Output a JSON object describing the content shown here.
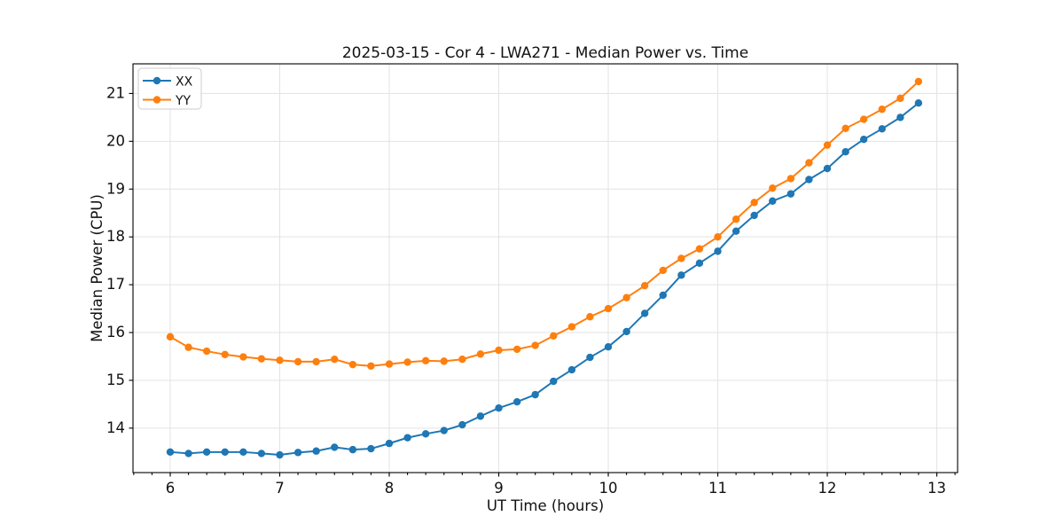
{
  "chart_data": {
    "type": "line",
    "title": "2025-03-15 - Cor 4 - LWA271 - Median Power vs. Time",
    "xlabel": "UT Time (hours)",
    "ylabel": "Median Power (CPU)",
    "xlim": [
      5.66,
      13.19
    ],
    "ylim": [
      13.07,
      21.62
    ],
    "xticks": [
      6,
      7,
      8,
      9,
      10,
      11,
      12,
      13
    ],
    "yticks": [
      14,
      15,
      16,
      17,
      18,
      19,
      20,
      21
    ],
    "minor_tick_step_x": 0.166667,
    "grid": true,
    "legend_position": "upper left",
    "x": [
      6.0,
      6.167,
      6.333,
      6.5,
      6.667,
      6.833,
      7.0,
      7.167,
      7.333,
      7.5,
      7.667,
      7.833,
      8.0,
      8.167,
      8.333,
      8.5,
      8.667,
      8.833,
      9.0,
      9.167,
      9.333,
      9.5,
      9.667,
      9.833,
      10.0,
      10.167,
      10.333,
      10.5,
      10.667,
      10.833,
      11.0,
      11.167,
      11.333,
      11.5,
      11.667,
      11.833,
      12.0,
      12.167,
      12.333,
      12.5,
      12.667,
      12.833
    ],
    "series": [
      {
        "name": "XX",
        "color": "#1f77b4",
        "values": [
          13.5,
          13.47,
          13.5,
          13.5,
          13.5,
          13.47,
          13.44,
          13.49,
          13.52,
          13.6,
          13.55,
          13.57,
          13.68,
          13.8,
          13.88,
          13.95,
          14.07,
          14.25,
          14.42,
          14.55,
          14.7,
          14.98,
          15.22,
          15.48,
          15.7,
          16.02,
          16.4,
          16.78,
          17.2,
          17.45,
          17.7,
          18.12,
          18.45,
          18.75,
          18.9,
          19.2,
          19.43,
          19.78,
          20.04,
          20.26,
          20.5,
          20.8
        ]
      },
      {
        "name": "YY",
        "color": "#ff7f0e",
        "values": [
          15.91,
          15.69,
          15.61,
          15.54,
          15.49,
          15.45,
          15.42,
          15.39,
          15.39,
          15.44,
          15.33,
          15.3,
          15.34,
          15.38,
          15.41,
          15.4,
          15.44,
          15.55,
          15.63,
          15.65,
          15.73,
          15.93,
          16.12,
          16.33,
          16.5,
          16.73,
          16.98,
          17.3,
          17.55,
          17.75,
          18.0,
          18.37,
          18.72,
          19.02,
          19.22,
          19.55,
          19.92,
          20.27,
          20.46,
          20.67,
          20.9,
          21.25
        ]
      }
    ]
  }
}
